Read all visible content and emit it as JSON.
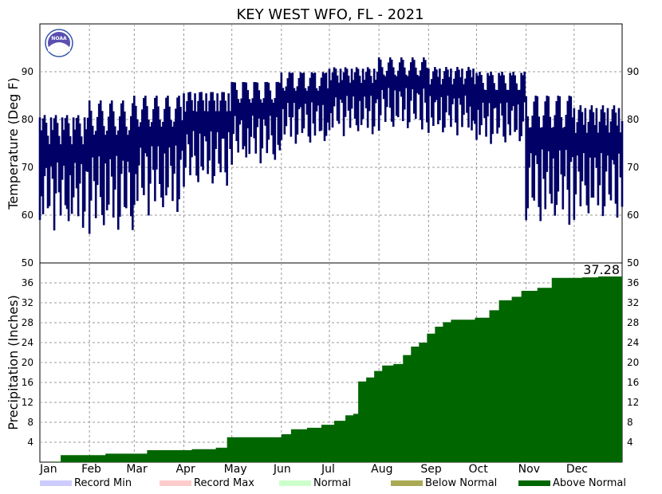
{
  "chart_data": [
    {
      "type": "bar",
      "title": "KEY WEST WFO, FL - 2021",
      "ylabel": "Temperature (Deg F)",
      "ylim": [
        50,
        100
      ],
      "yticks": [
        60,
        70,
        80,
        90
      ],
      "months": [
        "Jan",
        "Feb",
        "Mar",
        "Apr",
        "May",
        "Jun",
        "Jul",
        "Aug",
        "Sep",
        "Oct",
        "Nov",
        "Dec"
      ],
      "monthly_range": [
        {
          "month": "Jan",
          "min": 56,
          "max": 81
        },
        {
          "month": "Feb",
          "min": 55,
          "max": 84
        },
        {
          "month": "Mar",
          "min": 59,
          "max": 85
        },
        {
          "month": "Apr",
          "min": 65,
          "max": 86
        },
        {
          "month": "May",
          "min": 70,
          "max": 88
        },
        {
          "month": "Jun",
          "min": 74,
          "max": 90
        },
        {
          "month": "Jul",
          "min": 76,
          "max": 91
        },
        {
          "month": "Aug",
          "min": 77,
          "max": 93
        },
        {
          "month": "Sep",
          "min": 76,
          "max": 91
        },
        {
          "month": "Oct",
          "min": 74,
          "max": 90
        },
        {
          "month": "Nov",
          "min": 57,
          "max": 85
        },
        {
          "month": "Dec",
          "min": 58,
          "max": 83
        }
      ],
      "series_color": "#000066"
    },
    {
      "type": "area",
      "ylabel": "Precipitation (Inches)",
      "ylim": [
        0,
        40
      ],
      "yticks": [
        4,
        8,
        12,
        16,
        20,
        24,
        28,
        32,
        36
      ],
      "right_tick_top": "50",
      "annotation": "37.28",
      "cumulative_points": [
        {
          "day": 1,
          "value": 0
        },
        {
          "day": 9,
          "value": 0.1
        },
        {
          "day": 14,
          "value": 1.4
        },
        {
          "day": 42,
          "value": 1.7
        },
        {
          "day": 68,
          "value": 2.4
        },
        {
          "day": 96,
          "value": 2.6
        },
        {
          "day": 111,
          "value": 2.9
        },
        {
          "day": 118,
          "value": 5.0
        },
        {
          "day": 152,
          "value": 5.6
        },
        {
          "day": 158,
          "value": 6.6
        },
        {
          "day": 168,
          "value": 6.9
        },
        {
          "day": 177,
          "value": 7.5
        },
        {
          "day": 185,
          "value": 8.3
        },
        {
          "day": 192,
          "value": 9.4
        },
        {
          "day": 197,
          "value": 9.7
        },
        {
          "day": 200,
          "value": 16.2
        },
        {
          "day": 205,
          "value": 17.0
        },
        {
          "day": 210,
          "value": 18.3
        },
        {
          "day": 215,
          "value": 19.4
        },
        {
          "day": 222,
          "value": 19.7
        },
        {
          "day": 228,
          "value": 21.5
        },
        {
          "day": 233,
          "value": 23.2
        },
        {
          "day": 238,
          "value": 24.0
        },
        {
          "day": 243,
          "value": 25.8
        },
        {
          "day": 248,
          "value": 27.2
        },
        {
          "day": 253,
          "value": 28.1
        },
        {
          "day": 258,
          "value": 28.6
        },
        {
          "day": 273,
          "value": 29.0
        },
        {
          "day": 282,
          "value": 30.5
        },
        {
          "day": 288,
          "value": 32.5
        },
        {
          "day": 296,
          "value": 33.2
        },
        {
          "day": 302,
          "value": 34.4
        },
        {
          "day": 312,
          "value": 35.0
        },
        {
          "day": 321,
          "value": 37.0
        },
        {
          "day": 340,
          "value": 37.1
        },
        {
          "day": 350,
          "value": 37.28
        },
        {
          "day": 365,
          "value": 37.28
        }
      ],
      "fill_color": "#006600"
    }
  ],
  "legend": [
    {
      "label": "Record Min",
      "color": "#ccccff"
    },
    {
      "label": "Record Max",
      "color": "#ffcccc"
    },
    {
      "label": "Normal",
      "color": "#ccffcc"
    },
    {
      "label": "Below Normal",
      "color": "#aaaa55"
    },
    {
      "label": "Above Normal",
      "color": "#006600"
    }
  ],
  "logo": {
    "text": "NOAA"
  }
}
